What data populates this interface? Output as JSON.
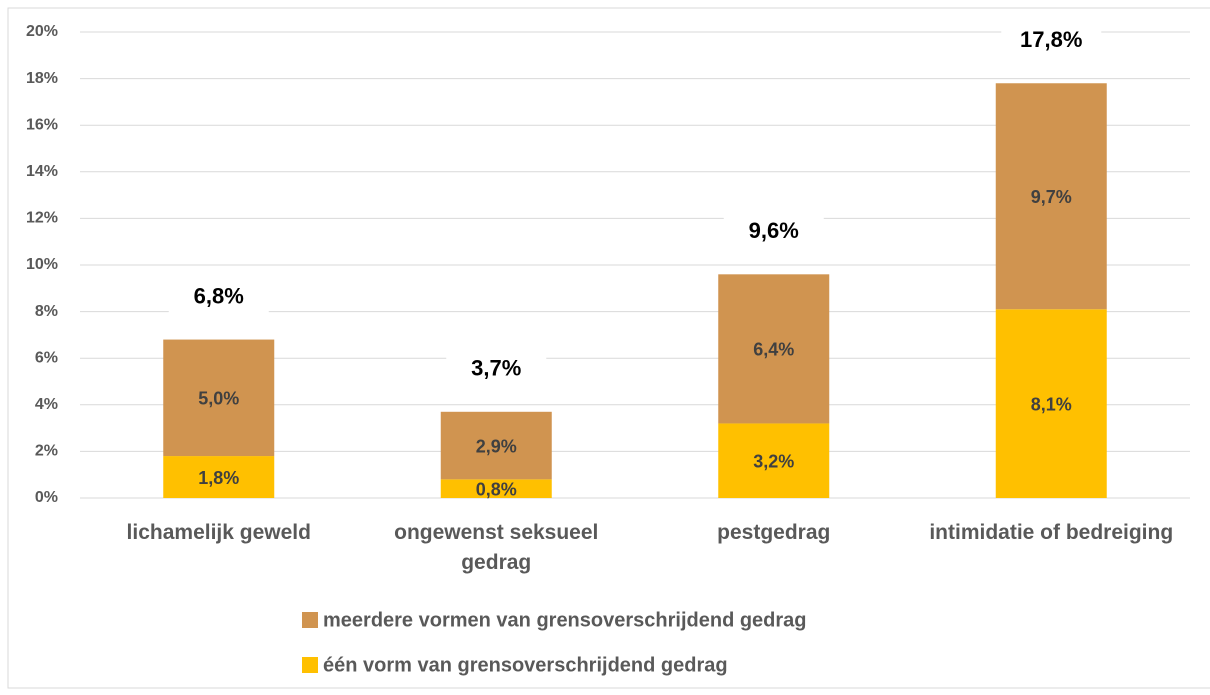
{
  "chart_data": {
    "type": "stacked_bar",
    "categories": [
      "lichamelijk geweld",
      "ongewenst seksueel gedrag",
      "pestgedrag",
      "intimidatie of bedreiging"
    ],
    "series": [
      {
        "name": "één vorm van grensoverschrijdend gedrag",
        "color": "#ffc000",
        "values": [
          1.8,
          0.8,
          3.2,
          8.1
        ],
        "value_labels": [
          "1,8%",
          "0,8%",
          "3,2%",
          "8,1%"
        ]
      },
      {
        "name": "meerdere vormen van grensoverschrijdend gedrag",
        "color": "#d09450",
        "values": [
          5.0,
          2.9,
          6.4,
          9.7
        ],
        "value_labels": [
          "5,0%",
          "2,9%",
          "6,4%",
          "9,7%"
        ]
      }
    ],
    "totals": [
      6.8,
      3.7,
      9.6,
      17.8
    ],
    "total_labels": [
      "6,8%",
      "3,7%",
      "9,6%",
      "17,8%"
    ],
    "ylim": [
      0,
      20
    ],
    "yticks": [
      {
        "value": 0,
        "label": "0%"
      },
      {
        "value": 2,
        "label": "2%"
      },
      {
        "value": 4,
        "label": "4%"
      },
      {
        "value": 6,
        "label": "6%"
      },
      {
        "value": 8,
        "label": "8%"
      },
      {
        "value": 10,
        "label": "10%"
      },
      {
        "value": 12,
        "label": "12%"
      },
      {
        "value": 14,
        "label": "14%"
      },
      {
        "value": 16,
        "label": "16%"
      },
      {
        "value": 18,
        "label": "18%"
      },
      {
        "value": 20,
        "label": "20%"
      }
    ],
    "grid": true
  }
}
